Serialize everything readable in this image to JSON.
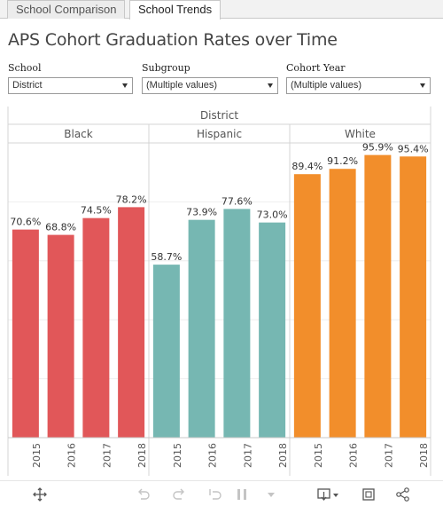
{
  "tabs": [
    {
      "label": "School Comparison",
      "active": false
    },
    {
      "label": "School Trends",
      "active": true
    }
  ],
  "title": "APS Cohort Graduation Rates over Time",
  "filters": {
    "school": {
      "label": "School",
      "value": "District"
    },
    "subgroup": {
      "label": "Subgroup",
      "value": "(Multiple values)"
    },
    "cohort_year": {
      "label": "Cohort  Year",
      "value": "(Multiple values)"
    }
  },
  "chart_data": {
    "type": "bar",
    "top_header": "District",
    "categories": [
      "2015",
      "2016",
      "2017",
      "2018"
    ],
    "ylim": [
      0,
      100
    ],
    "series": [
      {
        "name": "Black",
        "color": "#e15759",
        "values": [
          70.6,
          68.8,
          74.5,
          78.2
        ],
        "labels": [
          "70.6%",
          "68.8%",
          "74.5%",
          "78.2%"
        ]
      },
      {
        "name": "Hispanic",
        "color": "#76b7b2",
        "values": [
          58.7,
          73.9,
          77.6,
          73.0
        ],
        "labels": [
          "58.7%",
          "73.9%",
          "77.6%",
          "73.0%"
        ]
      },
      {
        "name": "White",
        "color": "#f28e2b",
        "values": [
          89.4,
          91.2,
          95.9,
          95.4
        ],
        "labels": [
          "89.4%",
          "91.2%",
          "95.9%",
          "95.4%"
        ]
      }
    ],
    "gridlines": true
  },
  "toolbar": {
    "icons": [
      "move-icon",
      "undo-icon",
      "redo-icon",
      "revert-icon",
      "pause-icon",
      "download-icon",
      "fullscreen-icon",
      "share-icon"
    ]
  }
}
